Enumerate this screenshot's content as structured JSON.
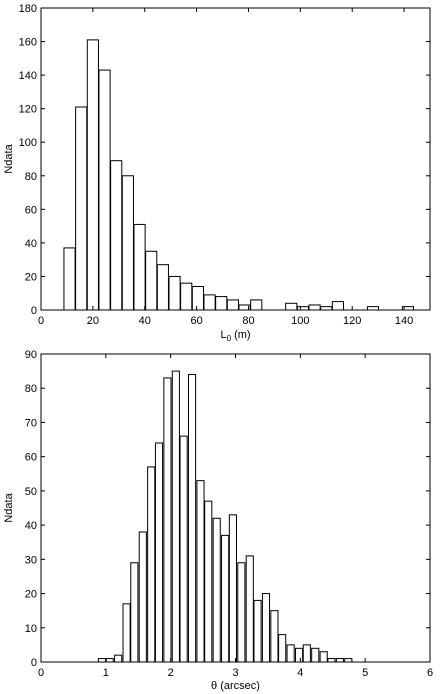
{
  "chart_data": [
    {
      "type": "bar",
      "xlabel": "L",
      "xlabel_sub": "0",
      "xlabel_suffix": " (m)",
      "ylabel": "Ndata",
      "xlim": [
        0,
        150
      ],
      "ylim": [
        0,
        180
      ],
      "xticks": [
        0,
        20,
        40,
        60,
        80,
        100,
        120,
        140
      ],
      "yticks": [
        0,
        20,
        40,
        60,
        80,
        100,
        120,
        140,
        160,
        180
      ],
      "bin_width": 4.3,
      "x": [
        11,
        15.5,
        20,
        24.5,
        29,
        33.5,
        38,
        42.5,
        47,
        51.5,
        56,
        60.5,
        65,
        69.5,
        74,
        78.5,
        83,
        87.5,
        92,
        96.5,
        101,
        105.5,
        110,
        114.5,
        119,
        123.5,
        128,
        132.5,
        137,
        141.5
      ],
      "values": [
        37,
        121,
        161,
        143,
        89,
        80,
        51,
        35,
        27,
        20,
        16,
        14,
        9,
        8,
        6,
        3,
        6,
        0,
        0,
        4,
        2,
        3,
        2,
        5,
        0,
        0,
        2,
        0,
        0,
        2
      ]
    },
    {
      "type": "bar",
      "xlabel": "θ (arcsec)",
      "ylabel": "Ndata",
      "xlim": [
        0,
        6
      ],
      "ylim": [
        0,
        90
      ],
      "xticks": [
        0,
        1,
        2,
        3,
        4,
        5,
        6
      ],
      "yticks": [
        0,
        10,
        20,
        30,
        40,
        50,
        60,
        70,
        80,
        90
      ],
      "bin_width": 0.11,
      "x": [
        0.94,
        1.06,
        1.19,
        1.32,
        1.44,
        1.57,
        1.7,
        1.82,
        1.95,
        2.08,
        2.2,
        2.33,
        2.46,
        2.58,
        2.71,
        2.84,
        2.96,
        3.09,
        3.22,
        3.34,
        3.47,
        3.6,
        3.72,
        3.85,
        3.98,
        4.1,
        4.23,
        4.36,
        4.48,
        4.61,
        4.74,
        4.86,
        4.99
      ],
      "values": [
        1,
        1,
        2,
        17,
        29,
        38,
        57,
        64,
        83,
        85,
        66,
        84,
        53,
        47,
        42,
        37,
        43,
        29,
        31,
        18,
        20,
        15,
        8,
        5,
        4,
        5,
        4,
        3,
        1,
        1,
        1,
        0,
        0
      ]
    }
  ]
}
